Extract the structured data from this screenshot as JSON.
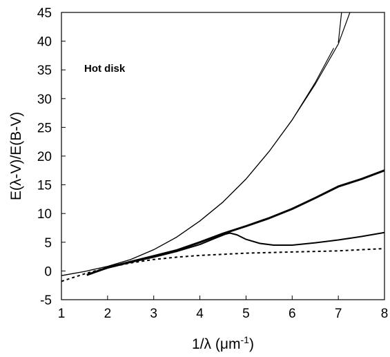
{
  "chart_data": {
    "type": "line",
    "title": "",
    "xlabel": "1/λ (μm",
    "xlabel_sup": "-1",
    "xlabel_close": ")",
    "ylabel": "E(λ-V)/E(B-V)",
    "xlim": [
      1,
      8
    ],
    "ylim": [
      -5,
      45
    ],
    "xticks": [
      1,
      2,
      3,
      4,
      5,
      6,
      7,
      8
    ],
    "yticks": [
      -5,
      0,
      5,
      10,
      15,
      20,
      25,
      30,
      35,
      40,
      45
    ],
    "grid": false,
    "annotation": "Hot disk",
    "series": [
      {
        "style": "thin",
        "x": [
          1.0,
          1.5,
          2.0,
          2.5,
          3.0,
          3.5,
          4.0,
          4.5,
          5.0,
          5.5,
          6.0,
          6.5,
          6.9
        ],
        "y": [
          -0.8,
          -0.1,
          0.8,
          2.0,
          3.7,
          5.9,
          8.7,
          12.0,
          16.0,
          20.8,
          26.3,
          32.8,
          38.8
        ]
      },
      {
        "style": "thin",
        "x": [
          1.0,
          1.5,
          2.0,
          2.5,
          3.0,
          3.5,
          4.0,
          4.5,
          5.0,
          5.5,
          6.0,
          6.5,
          7.0,
          7.25
        ],
        "y": [
          -0.8,
          -0.1,
          0.8,
          2.0,
          3.7,
          5.9,
          8.7,
          12.0,
          16.0,
          20.8,
          26.3,
          32.5,
          39.5,
          45
        ]
      },
      {
        "style": "thin",
        "x": [
          7.0,
          7.07
        ],
        "y": [
          39.7,
          45
        ]
      },
      {
        "style": "thick",
        "x": [
          1.55,
          2.0,
          2.5,
          3.0,
          3.5,
          4.0,
          4.5,
          5.0,
          5.5,
          6.0,
          6.5,
          7.0,
          7.5,
          8.0
        ],
        "y": [
          -0.7,
          0.6,
          1.6,
          2.6,
          3.6,
          5.0,
          6.5,
          7.8,
          9.2,
          10.8,
          12.7,
          14.7,
          16.0,
          17.5
        ]
      },
      {
        "style": "medium",
        "x": [
          1.55,
          2.0,
          2.5,
          3.0,
          3.5,
          4.0,
          4.3,
          4.55,
          4.65,
          4.8,
          5.0,
          5.3,
          5.6,
          6.0,
          6.5,
          7.0,
          7.5,
          8.0
        ],
        "y": [
          -0.7,
          0.5,
          1.5,
          2.4,
          3.4,
          4.6,
          5.6,
          6.4,
          6.6,
          6.3,
          5.5,
          4.8,
          4.5,
          4.5,
          4.9,
          5.4,
          6.0,
          6.7
        ]
      },
      {
        "style": "dashed",
        "x": [
          1.0,
          1.5,
          2.0,
          2.5,
          3.0,
          3.5,
          4.0,
          4.5,
          5.0,
          5.5,
          6.0,
          6.5,
          7.0,
          7.5,
          8.0
        ],
        "y": [
          -1.8,
          -0.5,
          0.6,
          1.4,
          2.0,
          2.4,
          2.7,
          2.9,
          3.1,
          3.2,
          3.3,
          3.4,
          3.5,
          3.7,
          3.9
        ]
      }
    ]
  }
}
